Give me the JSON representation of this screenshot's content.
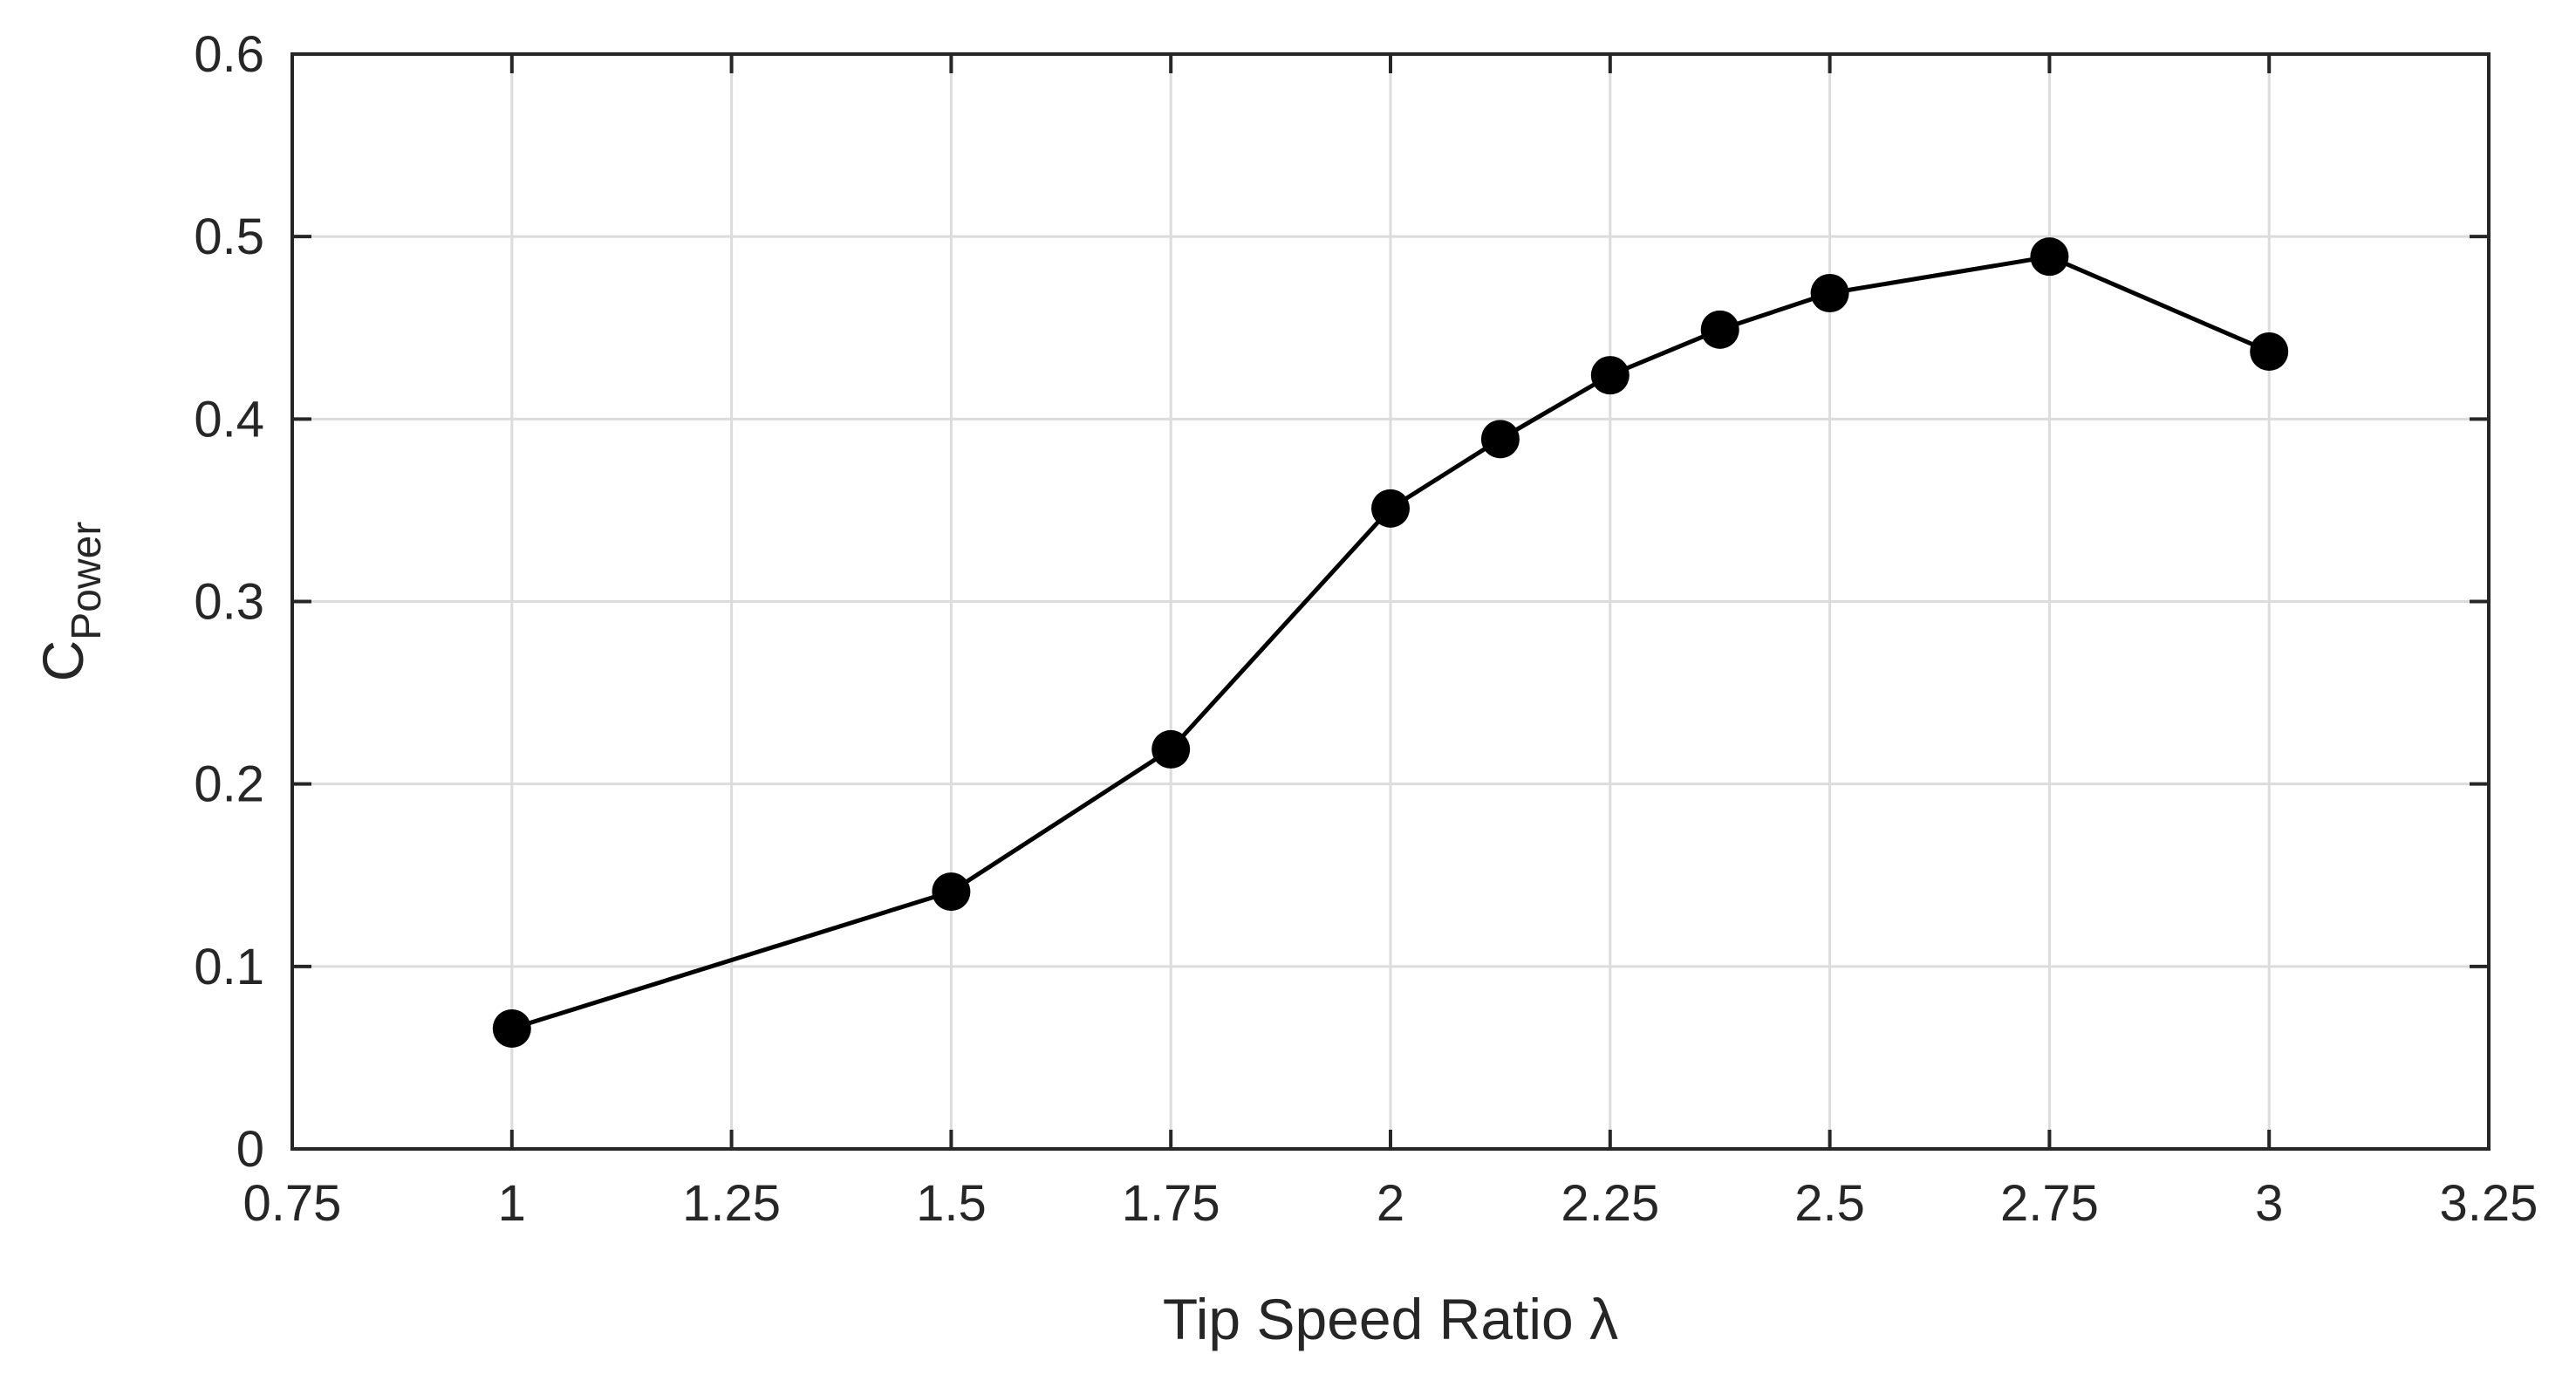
{
  "chart_data": {
    "type": "line",
    "title": "",
    "xlabel": "Tip Speed Ratio λ",
    "ylabel": {
      "main": "C",
      "subscript": "Power"
    },
    "xlim": [
      0.75,
      3.25
    ],
    "ylim": [
      0,
      0.6
    ],
    "xticks": [
      0.75,
      1,
      1.25,
      1.5,
      1.75,
      2,
      2.25,
      2.5,
      2.75,
      3,
      3.25
    ],
    "xtick_labels": [
      "0.75",
      "1",
      "1.25",
      "1.5",
      "1.75",
      "2",
      "2.25",
      "2.5",
      "2.75",
      "3",
      "3.25"
    ],
    "yticks": [
      0,
      0.1,
      0.2,
      0.3,
      0.4,
      0.5,
      0.6
    ],
    "ytick_labels": [
      "0",
      "0.1",
      "0.2",
      "0.3",
      "0.4",
      "0.5",
      "0.6"
    ],
    "grid": true,
    "legend": "none",
    "series": [
      {
        "color": "#000000",
        "marker": "filled-circle",
        "x": [
          1,
          1.5,
          1.75,
          2,
          2.125,
          2.25,
          2.375,
          2.5,
          2.75,
          3
        ],
        "y": [
          0.066,
          0.141,
          0.219,
          0.351,
          0.389,
          0.424,
          0.449,
          0.469,
          0.489,
          0.437
        ]
      }
    ]
  }
}
